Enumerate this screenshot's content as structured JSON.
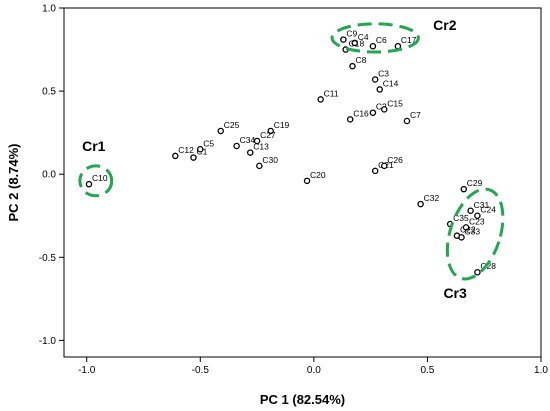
{
  "chart_data": {
    "type": "scatter",
    "xlabel": "PC 1 (82.54%)",
    "ylabel": "PC 2 (8.74%)",
    "xlim": [
      -1.1,
      1.0
    ],
    "ylim": [
      -1.1,
      1.0
    ],
    "xticks": [
      "-1.0",
      "-0.5",
      "0.0",
      "0.5",
      "1.0"
    ],
    "yticks": [
      "1.0",
      "0.5",
      "0.0",
      "-0.5",
      "-1.0"
    ],
    "points": [
      {
        "label": "C1",
        "x": -0.53,
        "y": 0.1
      },
      {
        "label": "C2",
        "x": 0.26,
        "y": 0.37
      },
      {
        "label": "C3",
        "x": 0.27,
        "y": 0.57
      },
      {
        "label": "C4",
        "x": 0.18,
        "y": 0.79
      },
      {
        "label": "C5",
        "x": -0.5,
        "y": 0.15
      },
      {
        "label": "C6",
        "x": 0.26,
        "y": 0.77
      },
      {
        "label": "C7",
        "x": 0.41,
        "y": 0.32
      },
      {
        "label": "C8",
        "x": 0.17,
        "y": 0.65
      },
      {
        "label": "C9",
        "x": 0.13,
        "y": 0.81
      },
      {
        "label": "C10",
        "x": -0.99,
        "y": -0.06
      },
      {
        "label": "C11",
        "x": 0.03,
        "y": 0.45
      },
      {
        "label": "C12",
        "x": -0.61,
        "y": 0.11
      },
      {
        "label": "C13",
        "x": -0.28,
        "y": 0.13
      },
      {
        "label": "C14",
        "x": 0.29,
        "y": 0.51
      },
      {
        "label": "C15",
        "x": 0.31,
        "y": 0.39
      },
      {
        "label": "C16",
        "x": 0.16,
        "y": 0.33
      },
      {
        "label": "C17",
        "x": 0.37,
        "y": 0.77
      },
      {
        "label": "C18",
        "x": 0.14,
        "y": 0.75
      },
      {
        "label": "C19",
        "x": -0.19,
        "y": 0.26
      },
      {
        "label": "C20",
        "x": -0.03,
        "y": -0.04
      },
      {
        "label": "C21",
        "x": 0.27,
        "y": 0.02
      },
      {
        "label": "C22",
        "x": 0.63,
        "y": -0.37
      },
      {
        "label": "C23",
        "x": 0.67,
        "y": -0.32
      },
      {
        "label": "C24",
        "x": 0.72,
        "y": -0.25
      },
      {
        "label": "C25",
        "x": -0.41,
        "y": 0.26
      },
      {
        "label": "C26",
        "x": 0.31,
        "y": 0.05
      },
      {
        "label": "C27",
        "x": -0.25,
        "y": 0.2
      },
      {
        "label": "C28",
        "x": 0.72,
        "y": -0.59
      },
      {
        "label": "C29",
        "x": 0.66,
        "y": -0.09
      },
      {
        "label": "C30",
        "x": -0.24,
        "y": 0.05
      },
      {
        "label": "C31",
        "x": 0.69,
        "y": -0.22
      },
      {
        "label": "C32",
        "x": 0.47,
        "y": -0.18
      },
      {
        "label": "C33",
        "x": 0.65,
        "y": -0.38
      },
      {
        "label": "C34",
        "x": -0.34,
        "y": 0.17
      },
      {
        "label": "C35",
        "x": 0.6,
        "y": -0.3
      }
    ],
    "clusters": [
      {
        "label": "Cr1",
        "cx": -0.96,
        "cy": -0.04,
        "rx": 0.07,
        "ry": 0.09,
        "rotate": 0
      },
      {
        "label": "Cr2",
        "cx": 0.27,
        "cy": 0.82,
        "rx": 0.19,
        "ry": 0.085,
        "rotate": 0
      },
      {
        "label": "Cr3",
        "cx": 0.71,
        "cy": -0.36,
        "rx": 0.11,
        "ry": 0.28,
        "rotate": 18
      }
    ],
    "ellipse_color": "#22A650",
    "grid": false
  }
}
